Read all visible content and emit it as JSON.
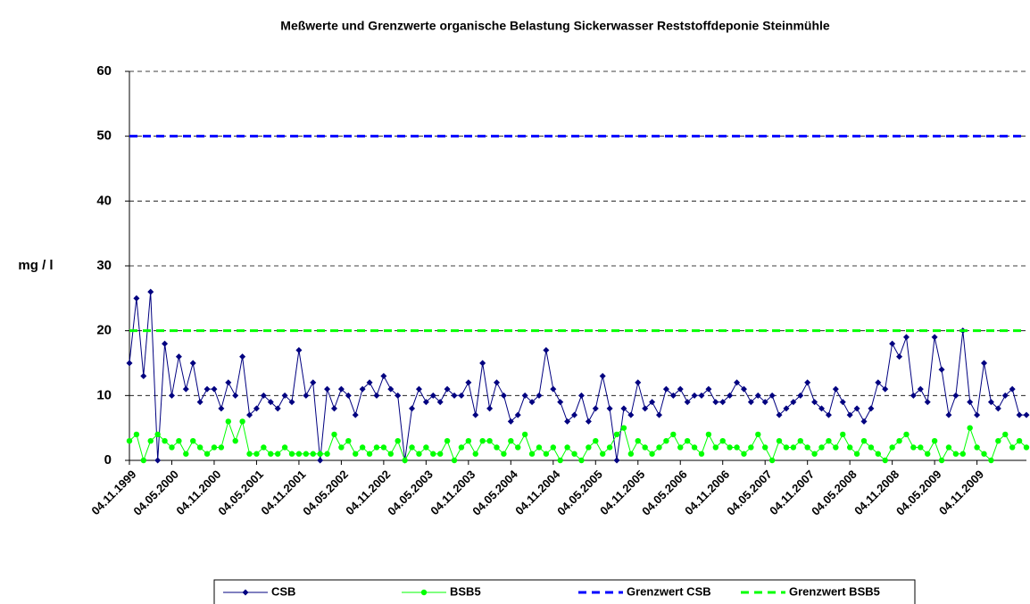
{
  "chart_data": {
    "type": "line",
    "title": "Meßwerte und Grenzwerte organische Belastung Sickerwasser Reststoffdeponie Steinmühle",
    "y_label": "mg / l",
    "categories": [
      "04.11.1999",
      null,
      null,
      null,
      null,
      null,
      "04.05.2000",
      null,
      null,
      null,
      null,
      null,
      "04.11.2000",
      null,
      null,
      null,
      null,
      null,
      "04.05.2001",
      null,
      null,
      null,
      null,
      null,
      "04.11.2001",
      null,
      null,
      null,
      null,
      null,
      "04.05.2002",
      null,
      null,
      null,
      null,
      null,
      "04.11.2002",
      null,
      null,
      null,
      null,
      null,
      "04.05.2003",
      null,
      null,
      null,
      null,
      null,
      "04.11.2003",
      null,
      null,
      null,
      null,
      null,
      "04.05.2004",
      null,
      null,
      null,
      null,
      null,
      "04.11.2004",
      null,
      null,
      null,
      null,
      null,
      "04.05.2005",
      null,
      null,
      null,
      null,
      null,
      "04.11.2005",
      null,
      null,
      null,
      null,
      null,
      "04.05.2006",
      null,
      null,
      null,
      null,
      null,
      "04.11.2006",
      null,
      null,
      null,
      null,
      null,
      "04.05.2007",
      null,
      null,
      null,
      null,
      null,
      "04.11.2007",
      null,
      null,
      null,
      null,
      null,
      "04.05.2008",
      null,
      null,
      null,
      null,
      null,
      "04.11.2008",
      null,
      null,
      null,
      null,
      null,
      "04.05.2009",
      null,
      null,
      null,
      null,
      null,
      "04.11.2009",
      null,
      null,
      null,
      null,
      null,
      null,
      null
    ],
    "series": [
      {
        "name": "CSB",
        "color": "#000080",
        "marker": "diamond",
        "values": [
          15,
          25,
          13,
          26,
          0,
          18,
          10,
          16,
          11,
          15,
          9,
          11,
          11,
          8,
          12,
          10,
          16,
          7,
          8,
          10,
          9,
          8,
          10,
          9,
          17,
          10,
          12,
          0,
          11,
          8,
          11,
          10,
          7,
          11,
          12,
          10,
          13,
          11,
          10,
          0,
          8,
          11,
          9,
          10,
          9,
          11,
          10,
          10,
          12,
          7,
          15,
          8,
          12,
          10,
          6,
          7,
          10,
          9,
          10,
          17,
          11,
          9,
          6,
          7,
          10,
          6,
          8,
          13,
          8,
          0,
          8,
          7,
          12,
          8,
          9,
          7,
          11,
          10,
          11,
          9,
          10,
          10,
          11,
          9,
          9,
          10,
          12,
          11,
          9,
          10,
          9,
          10,
          7,
          8,
          9,
          10,
          12,
          9,
          8,
          7,
          11,
          9,
          7,
          8,
          6,
          8,
          12,
          11,
          18,
          16,
          19,
          10,
          11,
          9,
          19,
          14,
          7,
          10,
          20,
          9,
          7,
          15,
          9,
          8,
          10,
          11,
          7,
          7
        ]
      },
      {
        "name": "BSB5",
        "color": "#00ff00",
        "marker": "circle",
        "values": [
          3,
          4,
          0,
          3,
          4,
          3,
          2,
          3,
          1,
          3,
          2,
          1,
          2,
          2,
          6,
          3,
          6,
          1,
          1,
          2,
          1,
          1,
          2,
          1,
          1,
          1,
          1,
          1,
          1,
          4,
          2,
          3,
          1,
          2,
          1,
          2,
          2,
          1,
          3,
          0,
          2,
          1,
          2,
          1,
          1,
          3,
          0,
          2,
          3,
          1,
          3,
          3,
          2,
          1,
          3,
          2,
          4,
          1,
          2,
          1,
          2,
          0,
          2,
          1,
          0,
          2,
          3,
          1,
          2,
          4,
          5,
          1,
          3,
          2,
          1,
          2,
          3,
          4,
          2,
          3,
          2,
          1,
          4,
          2,
          3,
          2,
          2,
          1,
          2,
          4,
          2,
          0,
          3,
          2,
          2,
          3,
          2,
          1,
          2,
          3,
          2,
          4,
          2,
          1,
          3,
          2,
          1,
          0,
          2,
          3,
          4,
          2,
          2,
          1,
          3,
          0,
          2,
          1,
          1,
          5,
          2,
          1,
          0,
          3,
          4,
          2,
          3,
          2
        ]
      },
      {
        "name": "Grenzwert CSB",
        "color": "#0000ff",
        "value": 50,
        "style": "dashed"
      },
      {
        "name": "Grenzwert BSB5",
        "color": "#00ff00",
        "value": 20,
        "style": "dashed"
      }
    ],
    "ylim": [
      0,
      60
    ],
    "yticks": [
      0,
      10,
      20,
      30,
      40,
      50,
      60
    ],
    "grid": true,
    "legend": "bottom"
  }
}
